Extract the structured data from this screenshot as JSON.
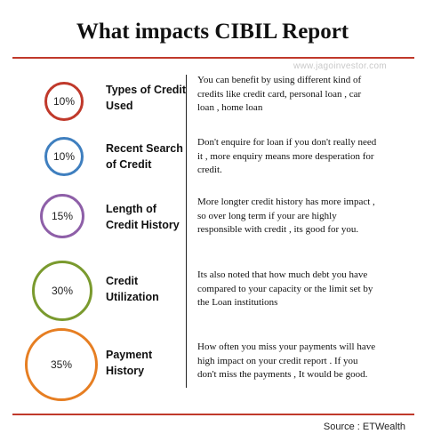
{
  "title": "What impacts CIBIL Report",
  "watermark": "www.jagoinvestor.com",
  "source": "Source : ETWealth",
  "colors": {
    "rule": "#c0392b",
    "types": "#c0392b",
    "search": "#3f7fbf",
    "length": "#8e5fa8",
    "utilization": "#7a9a2e",
    "payment": "#e67e22"
  },
  "factors": [
    {
      "percent": "10%",
      "label_line1": "Types of Credit",
      "label_line2": "Used",
      "desc_line1": "You can benefit by  using different kind of",
      "desc_line2": "credits like  credit card, personal loan , car",
      "desc_line3": "loan , home loan"
    },
    {
      "percent": "10%",
      "label_line1": "Recent Search",
      "label_line2": "of Credit",
      "desc_line1": "Don't enquire for loan if you don't really need",
      "desc_line2": "it , more enquiry means more desperation for",
      "desc_line3": "credit."
    },
    {
      "percent": "15%",
      "label_line1": "Length of",
      "label_line2": "Credit History",
      "desc_line1": "More longter credit history has more impact ,",
      "desc_line2": "so over long term if your are highly",
      "desc_line3": "responsible with credit , its good for you."
    },
    {
      "percent": "30%",
      "label_line1": "Credit",
      "label_line2": "Utilization",
      "desc_line1": "Its also noted that how much debt you have",
      "desc_line2": "compared to your capacity or the limit set by",
      "desc_line3": "the Loan institutions"
    },
    {
      "percent": "35%",
      "label_line1": "Payment",
      "label_line2": "History",
      "desc_line1": "How often you miss your payments will have",
      "desc_line2": "high impact on your credit report . If you",
      "desc_line3": "don't miss the payments , It would be good."
    }
  ]
}
